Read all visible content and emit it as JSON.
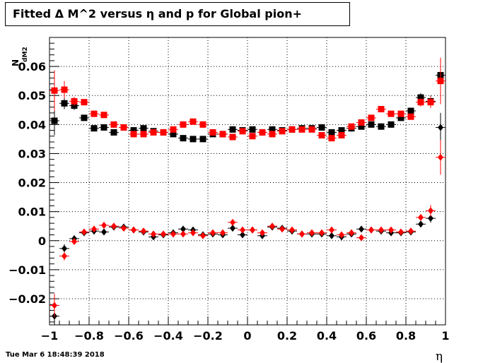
{
  "title": "Fitted Δ M^2 versus η and p for Global pion+",
  "timestamp": "Tue Mar  6 18:48:39 2018",
  "chart_data": {
    "type": "scatter",
    "xlabel": "η",
    "ylabel": "N",
    "ylabel_sub": "dM2",
    "xlim": [
      -1,
      1
    ],
    "ylim": [
      -0.029,
      0.07
    ],
    "xticks": [
      -1,
      -0.8,
      -0.6,
      -0.4,
      -0.2,
      0,
      0.2,
      0.4,
      0.6,
      0.8,
      1
    ],
    "xtick_labels": [
      "−1",
      "−0.8",
      "−0.6",
      "−0.4",
      "−0.2",
      "0",
      "0.2",
      "0.4",
      "0.6",
      "0.8",
      "1"
    ],
    "yticks": [
      -0.02,
      -0.01,
      0,
      0.01,
      0.02,
      0.03,
      0.04,
      0.05,
      0.06
    ],
    "ytick_labels": [
      "−0.02",
      "−0.01",
      "0",
      "0.01",
      "0.02",
      "0.03",
      "0.04",
      "0.05",
      "0.06"
    ],
    "grid": true,
    "x": [
      -0.975,
      -0.925,
      -0.875,
      -0.825,
      -0.775,
      -0.725,
      -0.675,
      -0.625,
      -0.575,
      -0.525,
      -0.475,
      -0.425,
      -0.375,
      -0.325,
      -0.275,
      -0.225,
      -0.175,
      -0.125,
      -0.075,
      -0.025,
      0.025,
      0.075,
      0.125,
      0.175,
      0.225,
      0.275,
      0.325,
      0.375,
      0.425,
      0.475,
      0.525,
      0.575,
      0.625,
      0.675,
      0.725,
      0.775,
      0.825,
      0.875,
      0.925,
      0.975
    ],
    "series": [
      {
        "marker": "square",
        "color": "#000000",
        "values": [
          0.0413,
          0.0473,
          0.0465,
          0.0423,
          0.0387,
          0.039,
          0.0373,
          0.039,
          0.038,
          0.0387,
          0.0377,
          0.0373,
          0.0367,
          0.0353,
          0.035,
          0.035,
          0.0367,
          0.0367,
          0.0383,
          0.038,
          0.0383,
          0.0373,
          0.0383,
          0.038,
          0.0383,
          0.0387,
          0.0387,
          0.039,
          0.0373,
          0.038,
          0.0387,
          0.0393,
          0.04,
          0.0393,
          0.04,
          0.0423,
          0.0447,
          0.0493,
          0.048,
          0.057
        ],
        "errors": [
          0.005,
          0.002,
          0.0015,
          0.001,
          0.001,
          0.001,
          0.001,
          0.001,
          0.001,
          0.001,
          0.001,
          0.001,
          0.001,
          0.001,
          0.001,
          0.001,
          0.001,
          0.001,
          0.001,
          0.001,
          0.001,
          0.001,
          0.001,
          0.001,
          0.001,
          0.001,
          0.001,
          0.001,
          0.001,
          0.001,
          0.001,
          0.001,
          0.001,
          0.001,
          0.001,
          0.001,
          0.001,
          0.0015,
          0.002,
          0.003
        ]
      },
      {
        "marker": "square",
        "color": "#ff0000",
        "values": [
          0.0517,
          0.052,
          0.048,
          0.0477,
          0.0437,
          0.0433,
          0.04,
          0.039,
          0.0367,
          0.0367,
          0.0373,
          0.0373,
          0.0383,
          0.04,
          0.041,
          0.04,
          0.0373,
          0.0367,
          0.0357,
          0.0377,
          0.036,
          0.0373,
          0.0367,
          0.0377,
          0.0383,
          0.0383,
          0.0383,
          0.0363,
          0.0353,
          0.0363,
          0.0393,
          0.0407,
          0.0423,
          0.0453,
          0.0437,
          0.0437,
          0.0427,
          0.0477,
          0.0477,
          0.055
        ],
        "errors": [
          0.007,
          0.003,
          0.0015,
          0.001,
          0.001,
          0.001,
          0.001,
          0.001,
          0.001,
          0.001,
          0.001,
          0.001,
          0.001,
          0.001,
          0.001,
          0.001,
          0.001,
          0.001,
          0.001,
          0.001,
          0.001,
          0.001,
          0.001,
          0.001,
          0.001,
          0.001,
          0.001,
          0.001,
          0.001,
          0.001,
          0.001,
          0.001,
          0.001,
          0.001,
          0.001,
          0.001,
          0.001,
          0.0015,
          0.002,
          0.008
        ]
      },
      {
        "marker": "diamond",
        "color": "#000000",
        "values": [
          -0.026,
          -0.0027,
          0.0007,
          0.0027,
          0.0033,
          0.003,
          0.0047,
          0.0047,
          0.0037,
          0.003,
          0.0013,
          0.002,
          0.0027,
          0.004,
          0.0037,
          0.002,
          0.0023,
          0.002,
          0.0043,
          0.002,
          0.0037,
          0.0017,
          0.0047,
          0.0043,
          0.0033,
          0.0023,
          0.0023,
          0.0023,
          0.0017,
          0.0013,
          0.0023,
          0.004,
          0.0037,
          0.0033,
          0.0027,
          0.0027,
          0.003,
          0.0057,
          0.0077,
          0.039
        ],
        "errors": [
          0.003,
          0.0015,
          0.001,
          0.001,
          0.001,
          0.001,
          0.001,
          0.001,
          0.001,
          0.001,
          0.001,
          0.001,
          0.001,
          0.001,
          0.001,
          0.001,
          0.001,
          0.001,
          0.001,
          0.001,
          0.001,
          0.001,
          0.001,
          0.001,
          0.001,
          0.001,
          0.001,
          0.001,
          0.001,
          0.001,
          0.001,
          0.001,
          0.001,
          0.001,
          0.001,
          0.001,
          0.001,
          0.001,
          0.0015,
          0.005
        ]
      },
      {
        "marker": "diamond",
        "color": "#ff0000",
        "values": [
          -0.0223,
          -0.0053,
          -0.0003,
          0.003,
          0.004,
          0.0053,
          0.005,
          0.0043,
          0.0037,
          0.0033,
          0.0023,
          0.0023,
          0.0023,
          0.0023,
          0.0027,
          0.0017,
          0.0027,
          0.0027,
          0.0063,
          0.0037,
          0.0037,
          0.0027,
          0.005,
          0.004,
          0.0037,
          0.0023,
          0.0027,
          0.0027,
          0.0037,
          0.002,
          0.0027,
          0.001,
          0.0037,
          0.0037,
          0.0037,
          0.003,
          0.0033,
          0.008,
          0.0103,
          0.0287
        ],
        "errors": [
          0.004,
          0.0015,
          0.001,
          0.001,
          0.001,
          0.001,
          0.001,
          0.001,
          0.001,
          0.001,
          0.001,
          0.001,
          0.001,
          0.001,
          0.001,
          0.001,
          0.001,
          0.001,
          0.001,
          0.001,
          0.001,
          0.001,
          0.001,
          0.001,
          0.001,
          0.001,
          0.001,
          0.001,
          0.001,
          0.001,
          0.001,
          0.001,
          0.001,
          0.001,
          0.001,
          0.001,
          0.001,
          0.001,
          0.002,
          0.006
        ]
      }
    ]
  }
}
